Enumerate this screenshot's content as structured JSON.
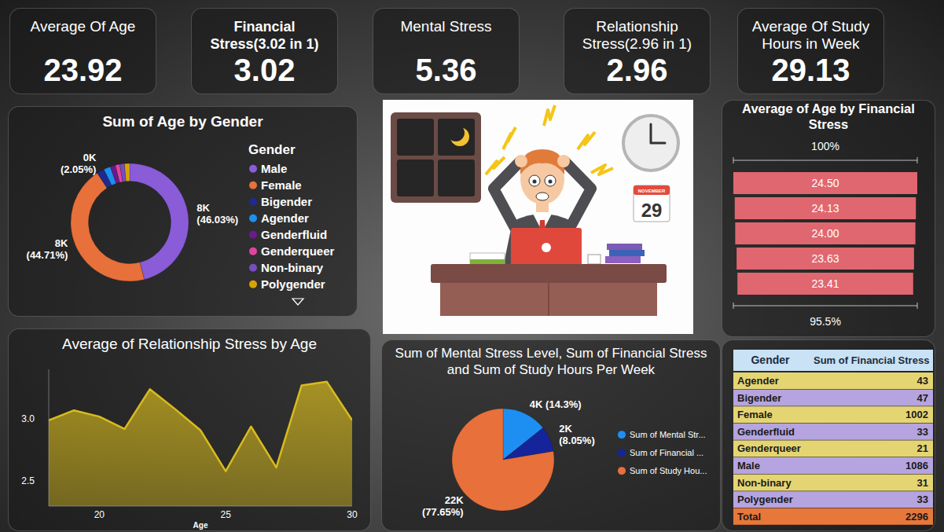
{
  "cards": [
    {
      "title": "Average Of Age",
      "value": 23.92
    },
    {
      "title": "Financial Stress(3.02 in 1)",
      "value": 3.02
    },
    {
      "title": "Mental Stress",
      "value": 5.36
    },
    {
      "title": "Relationship Stress(2.96 in 1)",
      "value": 2.96
    },
    {
      "title": "Average Of Study Hours in Week",
      "value": 29.13
    }
  ],
  "illustration": {
    "calendar_month": "NOVEMBER",
    "calendar_day": "29"
  },
  "chart_data": [
    {
      "type": "donut",
      "title": "Sum of Age by Gender",
      "legend_title": "Gender",
      "legend": "right",
      "categories": [
        "Male",
        "Female",
        "Bigender",
        "Agender",
        "Genderfluid",
        "Genderqueer",
        "Non-binary",
        "Polygender"
      ],
      "values": [
        8368,
        8128,
        373,
        345,
        255,
        220,
        235,
        256
      ],
      "colors": [
        "#8a5cd8",
        "#e8703a",
        "#1f2a8c",
        "#1c8fef",
        "#6b1a8a",
        "#e0449f",
        "#744ec2",
        "#d9a400"
      ],
      "data_labels": true,
      "value_labels": [
        "8K\n(46.03%)",
        "8K\n(44.71%)",
        "0K\n(2.05%)",
        null,
        null,
        null,
        null,
        null
      ]
    },
    {
      "type": "funnel",
      "title": "Average of Age by Financial Stress",
      "categories": [
        null,
        null,
        null,
        null,
        null
      ],
      "values": [
        24.5,
        24.13,
        24.0,
        23.63,
        23.41
      ],
      "value_labels": [
        "24.50",
        "24.13",
        "24.00",
        "23.63",
        "23.41"
      ],
      "xlim": [
        0,
        24.5
      ],
      "tick_labels": false,
      "data_labels": true,
      "color": "#e0676f",
      "annotations": [
        "100%",
        "95.5%"
      ]
    },
    {
      "type": "area",
      "title": "Average of Relationship Stress by Age",
      "x_label": "Age",
      "x": [
        18,
        19,
        20,
        21,
        22,
        23,
        24,
        25,
        26,
        27,
        28,
        29,
        30
      ],
      "values": [
        2.99,
        3.07,
        3.02,
        2.92,
        3.24,
        3.08,
        2.91,
        2.58,
        2.94,
        2.61,
        3.27,
        3.3,
        2.99
      ],
      "xlim": [
        18,
        30
      ],
      "xticks": [
        20,
        25,
        30
      ],
      "ylim": [
        2.3,
        3.4
      ],
      "yticks": [
        2.5,
        {
          "value": 3,
          "label": "3.0"
        }
      ],
      "grid": false,
      "color": "#d8bb1e"
    },
    {
      "type": "pie",
      "title": "Sum of Mental Stress Level, Sum of Financial Stress and Sum of Study Hours Per Week",
      "legend": "right",
      "categories": [
        "Sum of Mental Str...",
        "Sum of Financial ...",
        "Sum of Study Hou..."
      ],
      "values": [
        4074,
        2296,
        22135
      ],
      "colors": [
        "#1d8ff2",
        "#16249b",
        "#e8703a"
      ],
      "data_labels": true,
      "value_labels": [
        "4K (14.3%)",
        "2K\n(8.05%)",
        "22K\n(77.65%)"
      ]
    }
  ],
  "table": {
    "columns": [
      "Gender",
      "Sum of Financial Stress"
    ],
    "rows": [
      [
        "Agender",
        43
      ],
      [
        "Bigender",
        47
      ],
      [
        "Female",
        1002
      ],
      [
        "Genderfluid",
        33
      ],
      [
        "Genderqueer",
        21
      ],
      [
        "Male",
        1086
      ],
      [
        "Non-binary",
        31
      ],
      [
        "Polygender",
        33
      ]
    ],
    "total": [
      "Total",
      2296
    ]
  }
}
